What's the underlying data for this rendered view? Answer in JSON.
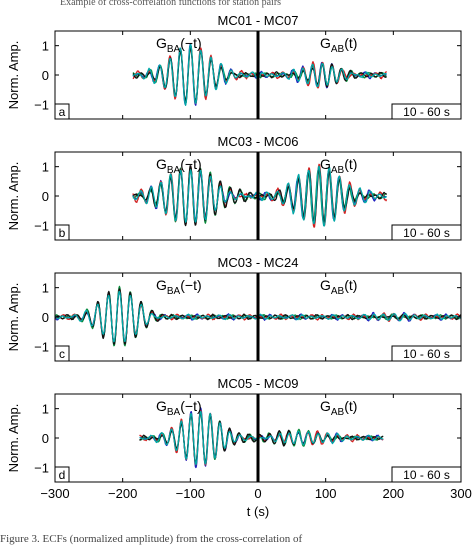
{
  "page": {
    "top_strip_text": "Example of cross-correlation functions for station pairs",
    "caption": "Figure 3. ECFs (normalized amplitude) from the cross-correlation of"
  },
  "chart_data": [
    {
      "type": "line",
      "title": "MC01 - MC07",
      "panel_letter": "a",
      "band_label": "10 - 60 s",
      "ylabel": "Norm. Amp.",
      "xlabel": "",
      "xlim": [
        -300,
        300
      ],
      "ylim": [
        -1.5,
        1.5
      ],
      "yticks": [
        -1,
        0,
        1
      ],
      "xticks": [
        -300,
        -200,
        -100,
        0,
        100,
        200,
        300
      ],
      "show_xtick_labels": false,
      "annotations": {
        "left": "G",
        "left_sub": "BA",
        "left_arg": "(−t)",
        "right": "G",
        "right_sub": "AB",
        "right_arg": "(t)"
      },
      "wave": {
        "extent": [
          -185,
          190
        ],
        "left_center": -100,
        "left_width": 42,
        "left_amp": 1.0,
        "left_freq": 0.066,
        "right_center": 95,
        "right_width": 35,
        "right_amp": 0.4,
        "right_freq": 0.07,
        "noise": 0.12
      },
      "series": [
        {
          "color": "#1f1fbf"
        },
        {
          "color": "#0a8a3a"
        },
        {
          "color": "#d42020"
        },
        {
          "color": "#111111"
        },
        {
          "color": "#00a7a7"
        }
      ]
    },
    {
      "type": "line",
      "title": "MC03 - MC06",
      "panel_letter": "b",
      "band_label": "10 - 60 s",
      "ylabel": "Norm. Amp.",
      "xlabel": "",
      "xlim": [
        -300,
        300
      ],
      "ylim": [
        -1.5,
        1.5
      ],
      "yticks": [
        -1,
        0,
        1
      ],
      "xticks": [
        -300,
        -200,
        -100,
        0,
        100,
        200,
        300
      ],
      "show_xtick_labels": false,
      "annotations": {
        "left": "G",
        "left_sub": "BA",
        "left_arg": "(−t)",
        "right": "G",
        "right_sub": "AB",
        "right_arg": "(t)"
      },
      "wave": {
        "extent": [
          -185,
          190
        ],
        "left_center": -100,
        "left_width": 50,
        "left_amp": 0.95,
        "left_freq": 0.068,
        "right_center": 90,
        "right_width": 45,
        "right_amp": 0.95,
        "right_freq": 0.066,
        "noise": 0.15
      },
      "series": [
        {
          "color": "#1f1fbf"
        },
        {
          "color": "#0a8a3a"
        },
        {
          "color": "#d42020"
        },
        {
          "color": "#111111"
        },
        {
          "color": "#00a7a7"
        }
      ]
    },
    {
      "type": "line",
      "title": "MC03 - MC24",
      "panel_letter": "c",
      "band_label": "10 - 60 s",
      "ylabel": "Norm. Amp.",
      "xlabel": "",
      "xlim": [
        -300,
        300
      ],
      "ylim": [
        -1.5,
        1.5
      ],
      "yticks": [
        -1,
        0,
        1
      ],
      "xticks": [
        -300,
        -200,
        -100,
        0,
        100,
        200,
        300
      ],
      "show_xtick_labels": false,
      "annotations": {
        "left": "G",
        "left_sub": "BA",
        "left_arg": "(−t)",
        "right": "G",
        "right_sub": "AB",
        "right_arg": "(t)"
      },
      "wave": {
        "extent": [
          -300,
          300
        ],
        "left_center": -205,
        "left_width": 38,
        "left_amp": 1.0,
        "left_freq": 0.062,
        "right_center": 200,
        "right_width": 40,
        "right_amp": 0.08,
        "right_freq": 0.066,
        "noise": 0.1
      },
      "series": [
        {
          "color": "#1f1fbf"
        },
        {
          "color": "#0a8a3a"
        },
        {
          "color": "#d42020"
        },
        {
          "color": "#111111"
        },
        {
          "color": "#00a7a7"
        }
      ]
    },
    {
      "type": "line",
      "title": "MC05 - MC09",
      "panel_letter": "d",
      "band_label": "10 - 60 s",
      "ylabel": "Norm. Amp.",
      "xlabel": "t (s)",
      "xlim": [
        -300,
        300
      ],
      "ylim": [
        -1.5,
        1.5
      ],
      "yticks": [
        -1,
        0,
        1
      ],
      "xticks": [
        -300,
        -200,
        -100,
        0,
        100,
        200,
        300
      ],
      "show_xtick_labels": true,
      "annotations": {
        "left": "G",
        "left_sub": "BA",
        "left_arg": "(−t)",
        "right": "G",
        "right_sub": "AB",
        "right_arg": "(t)"
      },
      "wave": {
        "extent": [
          -175,
          185
        ],
        "left_center": -85,
        "left_width": 40,
        "left_amp": 0.9,
        "left_freq": 0.07,
        "right_center": 60,
        "right_width": 55,
        "right_amp": 0.22,
        "right_freq": 0.07,
        "noise": 0.1
      },
      "series": [
        {
          "color": "#1f1fbf"
        },
        {
          "color": "#0a8a3a"
        },
        {
          "color": "#d42020"
        },
        {
          "color": "#111111"
        },
        {
          "color": "#00a7a7"
        }
      ]
    }
  ]
}
